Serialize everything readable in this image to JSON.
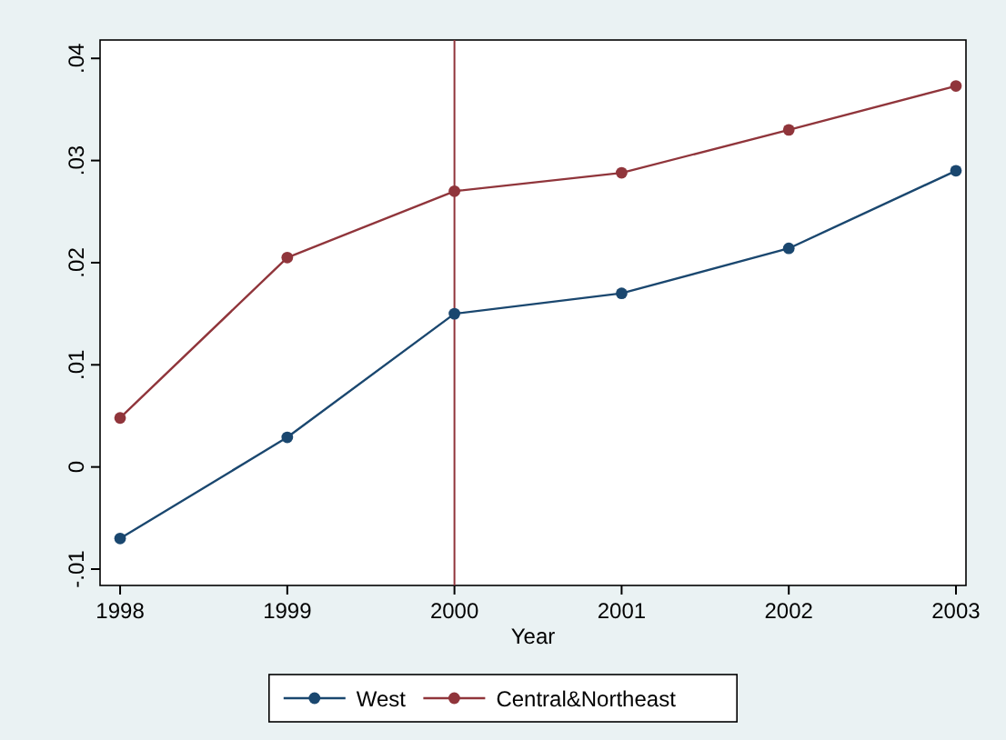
{
  "chart_data": {
    "type": "line",
    "xlabel": "Year",
    "x": [
      1998,
      1999,
      2000,
      2001,
      2002,
      2003
    ],
    "xlim": [
      1997.88,
      2003.06
    ],
    "xticks": [
      1998,
      1999,
      2000,
      2001,
      2002,
      2003
    ],
    "ylim": [
      -0.0116,
      0.0418
    ],
    "yticks": [
      {
        "value": -0.01,
        "label": "-.01"
      },
      {
        "value": 0,
        "label": "0"
      },
      {
        "value": 0.01,
        "label": ".01"
      },
      {
        "value": 0.02,
        "label": ".02"
      },
      {
        "value": 0.03,
        "label": ".03"
      },
      {
        "value": 0.04,
        "label": ".04"
      }
    ],
    "series": [
      {
        "name": "West",
        "color": "#1a476f",
        "values": [
          -0.007,
          0.0029,
          0.015,
          0.017,
          0.0214,
          0.029
        ]
      },
      {
        "name": "Central&Northeast",
        "color": "#90353b",
        "values": [
          0.0048,
          0.0205,
          0.027,
          0.0288,
          0.033,
          0.0373
        ]
      }
    ],
    "ref_lines": [
      {
        "axis": "x",
        "value": 2000,
        "color": "#90353b"
      }
    ],
    "grid": false,
    "legend": "bottom",
    "marker": "circle",
    "line_style": "solid"
  }
}
